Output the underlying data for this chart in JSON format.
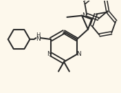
{
  "bg_color": "#fdf8ec",
  "line_color": "#2a2a2a",
  "line_width": 1.5,
  "figsize": [
    1.76,
    1.35
  ],
  "dpi": 100,
  "xlim": [
    0,
    176
  ],
  "ylim": [
    0,
    135
  ]
}
